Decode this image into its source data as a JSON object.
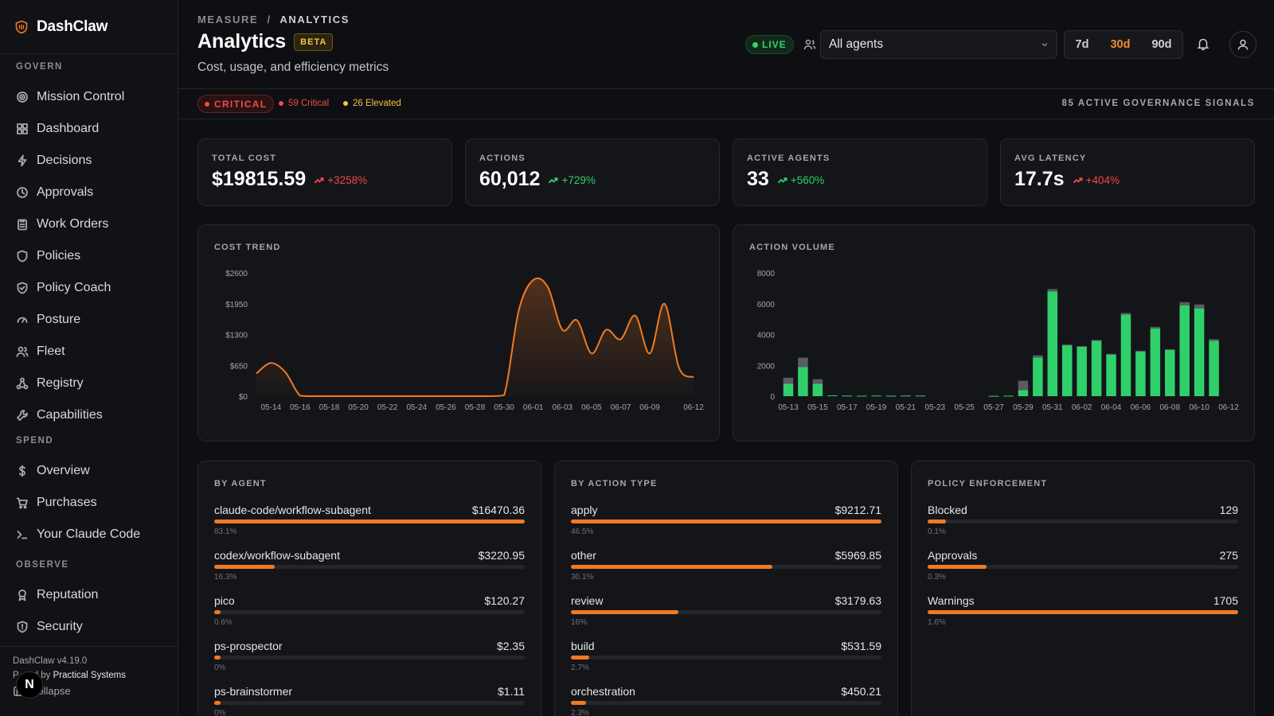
{
  "app": {
    "name": "DashClaw"
  },
  "sidebar": {
    "sections": [
      {
        "label": "GOVERN",
        "items": [
          {
            "label": "Mission Control",
            "icon": "target-icon"
          },
          {
            "label": "Dashboard",
            "icon": "grid-icon"
          },
          {
            "label": "Decisions",
            "icon": "bolt-icon"
          },
          {
            "label": "Approvals",
            "icon": "clock-icon"
          },
          {
            "label": "Work Orders",
            "icon": "clipboard-icon"
          },
          {
            "label": "Policies",
            "icon": "shield-icon"
          },
          {
            "label": "Policy Coach",
            "icon": "shield-check-icon"
          },
          {
            "label": "Posture",
            "icon": "gauge-icon"
          },
          {
            "label": "Fleet",
            "icon": "users-icon"
          },
          {
            "label": "Registry",
            "icon": "network-icon"
          },
          {
            "label": "Capabilities",
            "icon": "wrench-icon"
          }
        ]
      },
      {
        "label": "SPEND",
        "items": [
          {
            "label": "Overview",
            "icon": "dollar-icon"
          },
          {
            "label": "Purchases",
            "icon": "cart-icon"
          },
          {
            "label": "Your Claude Code",
            "icon": "terminal-icon"
          }
        ]
      },
      {
        "label": "OBSERVE",
        "items": [
          {
            "label": "Reputation",
            "icon": "award-icon"
          },
          {
            "label": "Security",
            "icon": "shield-alert-icon"
          }
        ]
      }
    ],
    "footer": {
      "version": "DashClaw v4.19.0",
      "powered_prefix": "P",
      "powered_mid": "d by",
      "powered_by": "Practical Systems",
      "collapse": "Collapse"
    }
  },
  "header": {
    "breadcrumb_parent": "MEASURE",
    "breadcrumb_sep": "/",
    "breadcrumb_current": "ANALYTICS",
    "title": "Analytics",
    "badge": "BETA",
    "subtitle": "Cost, usage, and efficiency metrics",
    "live": "LIVE",
    "agent_select": "All agents",
    "ranges": [
      "7d",
      "30d",
      "90d"
    ],
    "active_range": "30d"
  },
  "signals": {
    "level": "CRITICAL",
    "critical": "59 Critical",
    "elevated": "26 Elevated",
    "summary": "85 ACTIVE GOVERNANCE SIGNALS"
  },
  "kpis": [
    {
      "label": "TOTAL COST",
      "value": "$19815.59",
      "delta": "+3258%",
      "tone": "bad"
    },
    {
      "label": "ACTIONS",
      "value": "60,012",
      "delta": "+729%",
      "tone": "good"
    },
    {
      "label": "ACTIVE AGENTS",
      "value": "33",
      "delta": "+560%",
      "tone": "good"
    },
    {
      "label": "AVG LATENCY",
      "value": "17.7s",
      "delta": "+404%",
      "tone": "bad"
    }
  ],
  "colors": {
    "accent": "#f07a22",
    "good": "#2fd06a",
    "bad": "#ef4a4a",
    "warn": "#f3c440",
    "muted_bar": "#5a5c63"
  },
  "chart_data": [
    {
      "type": "area",
      "title": "COST TREND",
      "y_ticks": [
        "$0",
        "$650",
        "$1300",
        "$1950",
        "$2600"
      ],
      "ylim": [
        0,
        2600
      ],
      "x_ticks": [
        "05-14",
        "05-16",
        "05-18",
        "05-20",
        "05-22",
        "05-24",
        "05-26",
        "05-28",
        "05-30",
        "06-01",
        "06-03",
        "06-05",
        "06-07",
        "06-09",
        "06-12"
      ],
      "x": [
        "05-13",
        "05-14",
        "05-15",
        "05-16",
        "05-17",
        "05-18",
        "05-19",
        "05-20",
        "05-21",
        "05-22",
        "05-23",
        "05-24",
        "05-25",
        "05-26",
        "05-27",
        "05-28",
        "05-29",
        "05-30",
        "05-31",
        "06-01",
        "06-02",
        "06-03",
        "06-04",
        "06-05",
        "06-06",
        "06-07",
        "06-08",
        "06-09",
        "06-10",
        "06-11",
        "06-12"
      ],
      "values": [
        480,
        700,
        500,
        10,
        0,
        0,
        0,
        0,
        0,
        0,
        0,
        0,
        0,
        0,
        0,
        0,
        0,
        20,
        1800,
        2450,
        2300,
        1400,
        1600,
        900,
        1400,
        1200,
        1700,
        900,
        1950,
        600,
        400
      ]
    },
    {
      "type": "bar",
      "title": "ACTION VOLUME",
      "y_ticks": [
        "0",
        "2000",
        "4000",
        "6000",
        "8000"
      ],
      "ylim": [
        0,
        8000
      ],
      "x_ticks": [
        "05-13",
        "05-15",
        "05-17",
        "05-19",
        "05-21",
        "05-23",
        "05-25",
        "05-27",
        "05-29",
        "05-31",
        "06-02",
        "06-04",
        "06-06",
        "06-08",
        "06-10",
        "06-12"
      ],
      "categories": [
        "05-13",
        "05-14",
        "05-15",
        "05-16",
        "05-17",
        "05-18",
        "05-19",
        "05-20",
        "05-21",
        "05-22",
        "05-23",
        "05-24",
        "05-25",
        "05-26",
        "05-27",
        "05-28",
        "05-29",
        "05-30",
        "05-31",
        "06-01",
        "06-02",
        "06-03",
        "06-04",
        "06-05",
        "06-06",
        "06-07",
        "06-08",
        "06-09",
        "06-10",
        "06-11",
        "06-12"
      ],
      "series": [
        {
          "color": "#2fd06a",
          "values": [
            800,
            1900,
            800,
            50,
            40,
            30,
            40,
            30,
            40,
            40,
            0,
            0,
            0,
            0,
            20,
            30,
            400,
            2500,
            6800,
            3300,
            3200,
            3600,
            2700,
            5300,
            2900,
            4400,
            3000,
            5900,
            5700,
            3600,
            0
          ]
        },
        {
          "color": "#5a5c63",
          "values": [
            400,
            600,
            300,
            0,
            0,
            0,
            0,
            0,
            0,
            0,
            0,
            0,
            0,
            0,
            0,
            0,
            600,
            150,
            150,
            50,
            50,
            50,
            50,
            100,
            50,
            100,
            50,
            200,
            250,
            100,
            0
          ]
        }
      ]
    }
  ],
  "by_agent": {
    "title": "BY AGENT",
    "rows": [
      {
        "label": "claude-code/workflow-subagent",
        "value": "$16470.36",
        "pct": "83.1%",
        "fill": 1.0
      },
      {
        "label": "codex/workflow-subagent",
        "value": "$3220.95",
        "pct": "16.3%",
        "fill": 0.196
      },
      {
        "label": "pico",
        "value": "$120.27",
        "pct": "0.6%",
        "fill": 0.02
      },
      {
        "label": "ps-prospector",
        "value": "$2.35",
        "pct": "0%",
        "fill": 0.02
      },
      {
        "label": "ps-brainstormer",
        "value": "$1.11",
        "pct": "0%",
        "fill": 0.02
      }
    ]
  },
  "by_action": {
    "title": "BY ACTION TYPE",
    "rows": [
      {
        "label": "apply",
        "value": "$9212.71",
        "pct": "46.5%",
        "fill": 1.0
      },
      {
        "label": "other",
        "value": "$5969.85",
        "pct": "30.1%",
        "fill": 0.648
      },
      {
        "label": "review",
        "value": "$3179.63",
        "pct": "16%",
        "fill": 0.345
      },
      {
        "label": "build",
        "value": "$531.59",
        "pct": "2.7%",
        "fill": 0.058
      },
      {
        "label": "orchestration",
        "value": "$450.21",
        "pct": "2.3%",
        "fill": 0.049
      }
    ]
  },
  "policy": {
    "title": "POLICY ENFORCEMENT",
    "rows": [
      {
        "label": "Blocked",
        "value": "129",
        "pct": "0.1%",
        "fill": 0.06
      },
      {
        "label": "Approvals",
        "value": "275",
        "pct": "0.3%",
        "fill": 0.19
      },
      {
        "label": "Warnings",
        "value": "1705",
        "pct": "1.6%",
        "fill": 1.0
      }
    ]
  }
}
